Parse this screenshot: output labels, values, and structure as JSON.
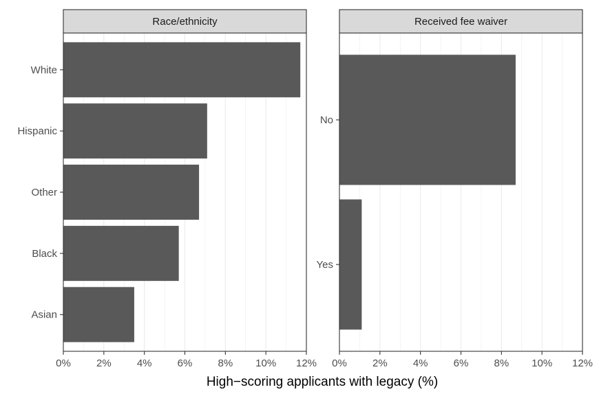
{
  "chart_data": [
    {
      "type": "bar",
      "orientation": "horizontal",
      "title": "Race/ethnicity",
      "categories": [
        "White",
        "Hispanic",
        "Other",
        "Black",
        "Asian"
      ],
      "values": [
        11.7,
        7.1,
        6.7,
        5.7,
        3.5
      ],
      "xlabel": "High−scoring applicants with legacy (%)",
      "ylabel": "",
      "xlim": [
        0,
        12
      ],
      "xticks": [
        "0%",
        "2%",
        "4%",
        "6%",
        "8%",
        "10%",
        "12%"
      ],
      "grid": true,
      "legend": "none",
      "bar_color": "#595959"
    },
    {
      "type": "bar",
      "orientation": "horizontal",
      "title": "Received fee waiver",
      "categories": [
        "No",
        "Yes"
      ],
      "values": [
        8.7,
        1.1
      ],
      "xlabel": "High−scoring applicants with legacy (%)",
      "ylabel": "",
      "xlim": [
        0,
        12
      ],
      "xticks": [
        "0%",
        "2%",
        "4%",
        "6%",
        "8%",
        "10%",
        "12%"
      ],
      "grid": true,
      "legend": "none",
      "bar_color": "#595959"
    }
  ],
  "shared": {
    "xlabel": "High−scoring applicants with legacy (%)"
  },
  "colors": {
    "bar": "#595959",
    "strip_bg": "#d9d9d9",
    "grid": "#ebebeb",
    "panel_border": "#333333",
    "tick_text": "#4d4d4d"
  }
}
